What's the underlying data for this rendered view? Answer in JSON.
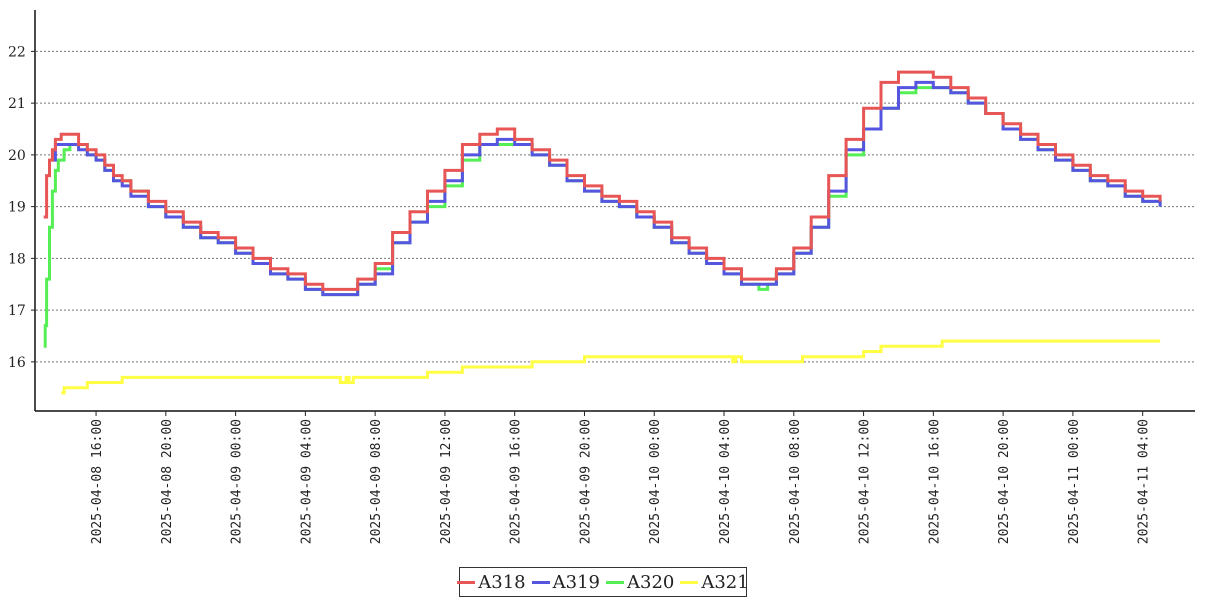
{
  "chart_data": {
    "type": "line",
    "step": true,
    "title": "",
    "xlabel": "",
    "ylabel": "",
    "ylim": [
      15.05,
      22.8
    ],
    "xlim": [
      "2025-04-08 12:30",
      "2025-04-11 07:00"
    ],
    "y_ticks": [
      16,
      17,
      18,
      19,
      20,
      21,
      22
    ],
    "x_ticks": [
      "2025-04-08 16:00",
      "2025-04-08 20:00",
      "2025-04-09 00:00",
      "2025-04-09 04:00",
      "2025-04-09 08:00",
      "2025-04-09 12:00",
      "2025-04-09 16:00",
      "2025-04-09 20:00",
      "2025-04-10 00:00",
      "2025-04-10 04:00",
      "2025-04-10 08:00",
      "2025-04-10 12:00",
      "2025-04-10 16:00",
      "2025-04-10 20:00",
      "2025-04-11 00:00",
      "2025-04-11 04:00"
    ],
    "grid": "horizontal dotted",
    "legend_position": "bottom-center",
    "series": [
      {
        "name": "A318",
        "color": "#e85555",
        "points": [
          [
            "2025-04-08 13:00",
            18.8
          ],
          [
            "2025-04-08 13:10",
            19.6
          ],
          [
            "2025-04-08 13:20",
            19.9
          ],
          [
            "2025-04-08 13:30",
            20.1
          ],
          [
            "2025-04-08 13:40",
            20.3
          ],
          [
            "2025-04-08 14:00",
            20.4
          ],
          [
            "2025-04-08 15:00",
            20.2
          ],
          [
            "2025-04-08 15:30",
            20.1
          ],
          [
            "2025-04-08 16:00",
            20.0
          ],
          [
            "2025-04-08 16:30",
            19.8
          ],
          [
            "2025-04-08 17:00",
            19.6
          ],
          [
            "2025-04-08 17:30",
            19.5
          ],
          [
            "2025-04-08 18:00",
            19.3
          ],
          [
            "2025-04-08 19:00",
            19.1
          ],
          [
            "2025-04-08 20:00",
            18.9
          ],
          [
            "2025-04-08 21:00",
            18.7
          ],
          [
            "2025-04-08 22:00",
            18.5
          ],
          [
            "2025-04-08 23:00",
            18.4
          ],
          [
            "2025-04-09 00:00",
            18.2
          ],
          [
            "2025-04-09 01:00",
            18.0
          ],
          [
            "2025-04-09 02:00",
            17.8
          ],
          [
            "2025-04-09 03:00",
            17.7
          ],
          [
            "2025-04-09 04:00",
            17.5
          ],
          [
            "2025-04-09 05:00",
            17.4
          ],
          [
            "2025-04-09 06:00",
            17.4
          ],
          [
            "2025-04-09 07:00",
            17.6
          ],
          [
            "2025-04-09 08:00",
            17.9
          ],
          [
            "2025-04-09 09:00",
            18.5
          ],
          [
            "2025-04-09 10:00",
            18.9
          ],
          [
            "2025-04-09 11:00",
            19.3
          ],
          [
            "2025-04-09 12:00",
            19.7
          ],
          [
            "2025-04-09 13:00",
            20.2
          ],
          [
            "2025-04-09 14:00",
            20.4
          ],
          [
            "2025-04-09 15:00",
            20.5
          ],
          [
            "2025-04-09 16:00",
            20.3
          ],
          [
            "2025-04-09 17:00",
            20.1
          ],
          [
            "2025-04-09 18:00",
            19.9
          ],
          [
            "2025-04-09 19:00",
            19.6
          ],
          [
            "2025-04-09 20:00",
            19.4
          ],
          [
            "2025-04-09 21:00",
            19.2
          ],
          [
            "2025-04-09 22:00",
            19.1
          ],
          [
            "2025-04-09 23:00",
            18.9
          ],
          [
            "2025-04-10 00:00",
            18.7
          ],
          [
            "2025-04-10 01:00",
            18.4
          ],
          [
            "2025-04-10 02:00",
            18.2
          ],
          [
            "2025-04-10 03:00",
            18.0
          ],
          [
            "2025-04-10 04:00",
            17.8
          ],
          [
            "2025-04-10 05:00",
            17.6
          ],
          [
            "2025-04-10 06:00",
            17.6
          ],
          [
            "2025-04-10 07:00",
            17.8
          ],
          [
            "2025-04-10 08:00",
            18.2
          ],
          [
            "2025-04-10 09:00",
            18.8
          ],
          [
            "2025-04-10 10:00",
            19.6
          ],
          [
            "2025-04-10 11:00",
            20.3
          ],
          [
            "2025-04-10 12:00",
            20.9
          ],
          [
            "2025-04-10 13:00",
            21.4
          ],
          [
            "2025-04-10 14:00",
            21.6
          ],
          [
            "2025-04-10 15:00",
            21.6
          ],
          [
            "2025-04-10 16:00",
            21.5
          ],
          [
            "2025-04-10 17:00",
            21.3
          ],
          [
            "2025-04-10 18:00",
            21.1
          ],
          [
            "2025-04-10 19:00",
            20.8
          ],
          [
            "2025-04-10 20:00",
            20.6
          ],
          [
            "2025-04-10 21:00",
            20.4
          ],
          [
            "2025-04-10 22:00",
            20.2
          ],
          [
            "2025-04-10 23:00",
            20.0
          ],
          [
            "2025-04-11 00:00",
            19.8
          ],
          [
            "2025-04-11 01:00",
            19.6
          ],
          [
            "2025-04-11 02:00",
            19.5
          ],
          [
            "2025-04-11 03:00",
            19.3
          ],
          [
            "2025-04-11 04:00",
            19.2
          ],
          [
            "2025-04-11 05:00",
            19.1
          ]
        ]
      },
      {
        "name": "A319",
        "color": "#5555e0",
        "points": [
          [
            "2025-04-08 13:30",
            19.9
          ],
          [
            "2025-04-08 13:40",
            20.2
          ],
          [
            "2025-04-08 15:00",
            20.1
          ],
          [
            "2025-04-08 15:30",
            20.0
          ],
          [
            "2025-04-08 16:00",
            19.9
          ],
          [
            "2025-04-08 16:30",
            19.7
          ],
          [
            "2025-04-08 17:00",
            19.5
          ],
          [
            "2025-04-08 17:30",
            19.4
          ],
          [
            "2025-04-08 18:00",
            19.2
          ],
          [
            "2025-04-08 19:00",
            19.0
          ],
          [
            "2025-04-08 20:00",
            18.8
          ],
          [
            "2025-04-08 21:00",
            18.6
          ],
          [
            "2025-04-08 22:00",
            18.4
          ],
          [
            "2025-04-08 23:00",
            18.3
          ],
          [
            "2025-04-09 00:00",
            18.1
          ],
          [
            "2025-04-09 01:00",
            17.9
          ],
          [
            "2025-04-09 02:00",
            17.7
          ],
          [
            "2025-04-09 03:00",
            17.6
          ],
          [
            "2025-04-09 04:00",
            17.4
          ],
          [
            "2025-04-09 05:00",
            17.3
          ],
          [
            "2025-04-09 06:00",
            17.3
          ],
          [
            "2025-04-09 07:00",
            17.5
          ],
          [
            "2025-04-09 08:00",
            17.7
          ],
          [
            "2025-04-09 09:00",
            18.3
          ],
          [
            "2025-04-09 10:00",
            18.7
          ],
          [
            "2025-04-09 11:00",
            19.1
          ],
          [
            "2025-04-09 12:00",
            19.5
          ],
          [
            "2025-04-09 13:00",
            20.0
          ],
          [
            "2025-04-09 14:00",
            20.2
          ],
          [
            "2025-04-09 15:00",
            20.3
          ],
          [
            "2025-04-09 16:00",
            20.2
          ],
          [
            "2025-04-09 17:00",
            20.0
          ],
          [
            "2025-04-09 18:00",
            19.8
          ],
          [
            "2025-04-09 19:00",
            19.5
          ],
          [
            "2025-04-09 20:00",
            19.3
          ],
          [
            "2025-04-09 21:00",
            19.1
          ],
          [
            "2025-04-09 22:00",
            19.0
          ],
          [
            "2025-04-09 23:00",
            18.8
          ],
          [
            "2025-04-10 00:00",
            18.6
          ],
          [
            "2025-04-10 01:00",
            18.3
          ],
          [
            "2025-04-10 02:00",
            18.1
          ],
          [
            "2025-04-10 03:00",
            17.9
          ],
          [
            "2025-04-10 04:00",
            17.7
          ],
          [
            "2025-04-10 05:00",
            17.5
          ],
          [
            "2025-04-10 06:00",
            17.5
          ],
          [
            "2025-04-10 07:00",
            17.7
          ],
          [
            "2025-04-10 08:00",
            18.1
          ],
          [
            "2025-04-10 09:00",
            18.6
          ],
          [
            "2025-04-10 10:00",
            19.3
          ],
          [
            "2025-04-10 11:00",
            20.1
          ],
          [
            "2025-04-10 12:00",
            20.5
          ],
          [
            "2025-04-10 13:00",
            20.9
          ],
          [
            "2025-04-10 14:00",
            21.3
          ],
          [
            "2025-04-10 15:00",
            21.4
          ],
          [
            "2025-04-10 16:00",
            21.3
          ],
          [
            "2025-04-10 17:00",
            21.2
          ],
          [
            "2025-04-10 18:00",
            21.0
          ],
          [
            "2025-04-10 19:00",
            20.8
          ],
          [
            "2025-04-10 20:00",
            20.5
          ],
          [
            "2025-04-10 21:00",
            20.3
          ],
          [
            "2025-04-10 22:00",
            20.1
          ],
          [
            "2025-04-10 23:00",
            19.9
          ],
          [
            "2025-04-11 00:00",
            19.7
          ],
          [
            "2025-04-11 01:00",
            19.5
          ],
          [
            "2025-04-11 02:00",
            19.4
          ],
          [
            "2025-04-11 03:00",
            19.2
          ],
          [
            "2025-04-11 04:00",
            19.1
          ],
          [
            "2025-04-11 05:00",
            19.0
          ]
        ]
      },
      {
        "name": "A320",
        "color": "#55ee55",
        "points": [
          [
            "2025-04-08 13:00",
            16.3
          ],
          [
            "2025-04-08 13:05",
            16.7
          ],
          [
            "2025-04-08 13:10",
            17.6
          ],
          [
            "2025-04-08 13:20",
            18.6
          ],
          [
            "2025-04-08 13:30",
            19.3
          ],
          [
            "2025-04-08 13:40",
            19.7
          ],
          [
            "2025-04-08 13:50",
            19.9
          ],
          [
            "2025-04-08 14:10",
            20.1
          ],
          [
            "2025-04-08 14:30",
            20.2
          ],
          [
            "2025-04-08 15:30",
            20.0
          ],
          [
            "2025-04-08 16:00",
            19.9
          ],
          [
            "2025-04-08 16:30",
            19.7
          ],
          [
            "2025-04-08 17:00",
            19.5
          ],
          [
            "2025-04-08 18:00",
            19.3
          ],
          [
            "2025-04-08 19:00",
            19.0
          ],
          [
            "2025-04-08 20:00",
            18.8
          ],
          [
            "2025-04-08 21:00",
            18.6
          ],
          [
            "2025-04-08 22:00",
            18.4
          ],
          [
            "2025-04-08 23:00",
            18.3
          ],
          [
            "2025-04-09 00:00",
            18.1
          ],
          [
            "2025-04-09 01:00",
            17.9
          ],
          [
            "2025-04-09 02:00",
            17.7
          ],
          [
            "2025-04-09 03:00",
            17.6
          ],
          [
            "2025-04-09 04:00",
            17.4
          ],
          [
            "2025-04-09 05:00",
            17.3
          ],
          [
            "2025-04-09 06:00",
            17.3
          ],
          [
            "2025-04-09 07:00",
            17.5
          ],
          [
            "2025-04-09 08:00",
            17.8
          ],
          [
            "2025-04-09 09:00",
            18.3
          ],
          [
            "2025-04-09 10:00",
            18.7
          ],
          [
            "2025-04-09 11:00",
            19.0
          ],
          [
            "2025-04-09 12:00",
            19.4
          ],
          [
            "2025-04-09 13:00",
            19.9
          ],
          [
            "2025-04-09 14:00",
            20.2
          ],
          [
            "2025-04-09 15:00",
            20.2
          ],
          [
            "2025-04-09 16:00",
            20.2
          ],
          [
            "2025-04-09 17:00",
            20.0
          ],
          [
            "2025-04-09 18:00",
            19.8
          ],
          [
            "2025-04-09 19:00",
            19.5
          ],
          [
            "2025-04-09 20:00",
            19.3
          ],
          [
            "2025-04-09 21:00",
            19.1
          ],
          [
            "2025-04-09 22:00",
            19.0
          ],
          [
            "2025-04-09 23:00",
            18.8
          ],
          [
            "2025-04-10 00:00",
            18.6
          ],
          [
            "2025-04-10 01:00",
            18.3
          ],
          [
            "2025-04-10 02:00",
            18.1
          ],
          [
            "2025-04-10 03:00",
            17.9
          ],
          [
            "2025-04-10 04:00",
            17.7
          ],
          [
            "2025-04-10 05:00",
            17.5
          ],
          [
            "2025-04-10 06:00",
            17.4
          ],
          [
            "2025-04-10 06:30",
            17.5
          ],
          [
            "2025-04-10 07:00",
            17.7
          ],
          [
            "2025-04-10 08:00",
            18.1
          ],
          [
            "2025-04-10 09:00",
            18.6
          ],
          [
            "2025-04-10 10:00",
            19.2
          ],
          [
            "2025-04-10 11:00",
            20.0
          ],
          [
            "2025-04-10 12:00",
            20.5
          ],
          [
            "2025-04-10 13:00",
            20.9
          ],
          [
            "2025-04-10 14:00",
            21.2
          ],
          [
            "2025-04-10 15:00",
            21.3
          ],
          [
            "2025-04-10 16:00",
            21.3
          ],
          [
            "2025-04-10 17:00",
            21.2
          ],
          [
            "2025-04-10 18:00",
            21.0
          ],
          [
            "2025-04-10 19:00",
            20.8
          ],
          [
            "2025-04-10 20:00",
            20.5
          ],
          [
            "2025-04-10 21:00",
            20.3
          ],
          [
            "2025-04-10 22:00",
            20.1
          ],
          [
            "2025-04-10 23:00",
            19.9
          ],
          [
            "2025-04-11 00:00",
            19.7
          ],
          [
            "2025-04-11 01:00",
            19.5
          ],
          [
            "2025-04-11 02:00",
            19.4
          ],
          [
            "2025-04-11 03:00",
            19.2
          ],
          [
            "2025-04-11 04:00",
            19.1
          ],
          [
            "2025-04-11 05:00",
            19.0
          ]
        ]
      },
      {
        "name": "A321",
        "color": "#ffff44",
        "points": [
          [
            "2025-04-08 14:00",
            15.4
          ],
          [
            "2025-04-08 14:10",
            15.5
          ],
          [
            "2025-04-08 15:00",
            15.5
          ],
          [
            "2025-04-08 15:30",
            15.6
          ],
          [
            "2025-04-08 17:00",
            15.6
          ],
          [
            "2025-04-08 17:30",
            15.7
          ],
          [
            "2025-04-09 06:00",
            15.6
          ],
          [
            "2025-04-09 06:20",
            15.7
          ],
          [
            "2025-04-09 06:30",
            15.6
          ],
          [
            "2025-04-09 06:45",
            15.7
          ],
          [
            "2025-04-09 11:00",
            15.8
          ],
          [
            "2025-04-09 13:00",
            15.9
          ],
          [
            "2025-04-09 17:00",
            16.0
          ],
          [
            "2025-04-09 20:00",
            16.1
          ],
          [
            "2025-04-10 04:30",
            16.0
          ],
          [
            "2025-04-10 04:40",
            16.1
          ],
          [
            "2025-04-10 05:00",
            16.0
          ],
          [
            "2025-04-10 08:30",
            16.1
          ],
          [
            "2025-04-10 12:00",
            16.2
          ],
          [
            "2025-04-10 13:00",
            16.3
          ],
          [
            "2025-04-10 16:30",
            16.4
          ],
          [
            "2025-04-11 05:00",
            16.4
          ]
        ]
      }
    ]
  }
}
